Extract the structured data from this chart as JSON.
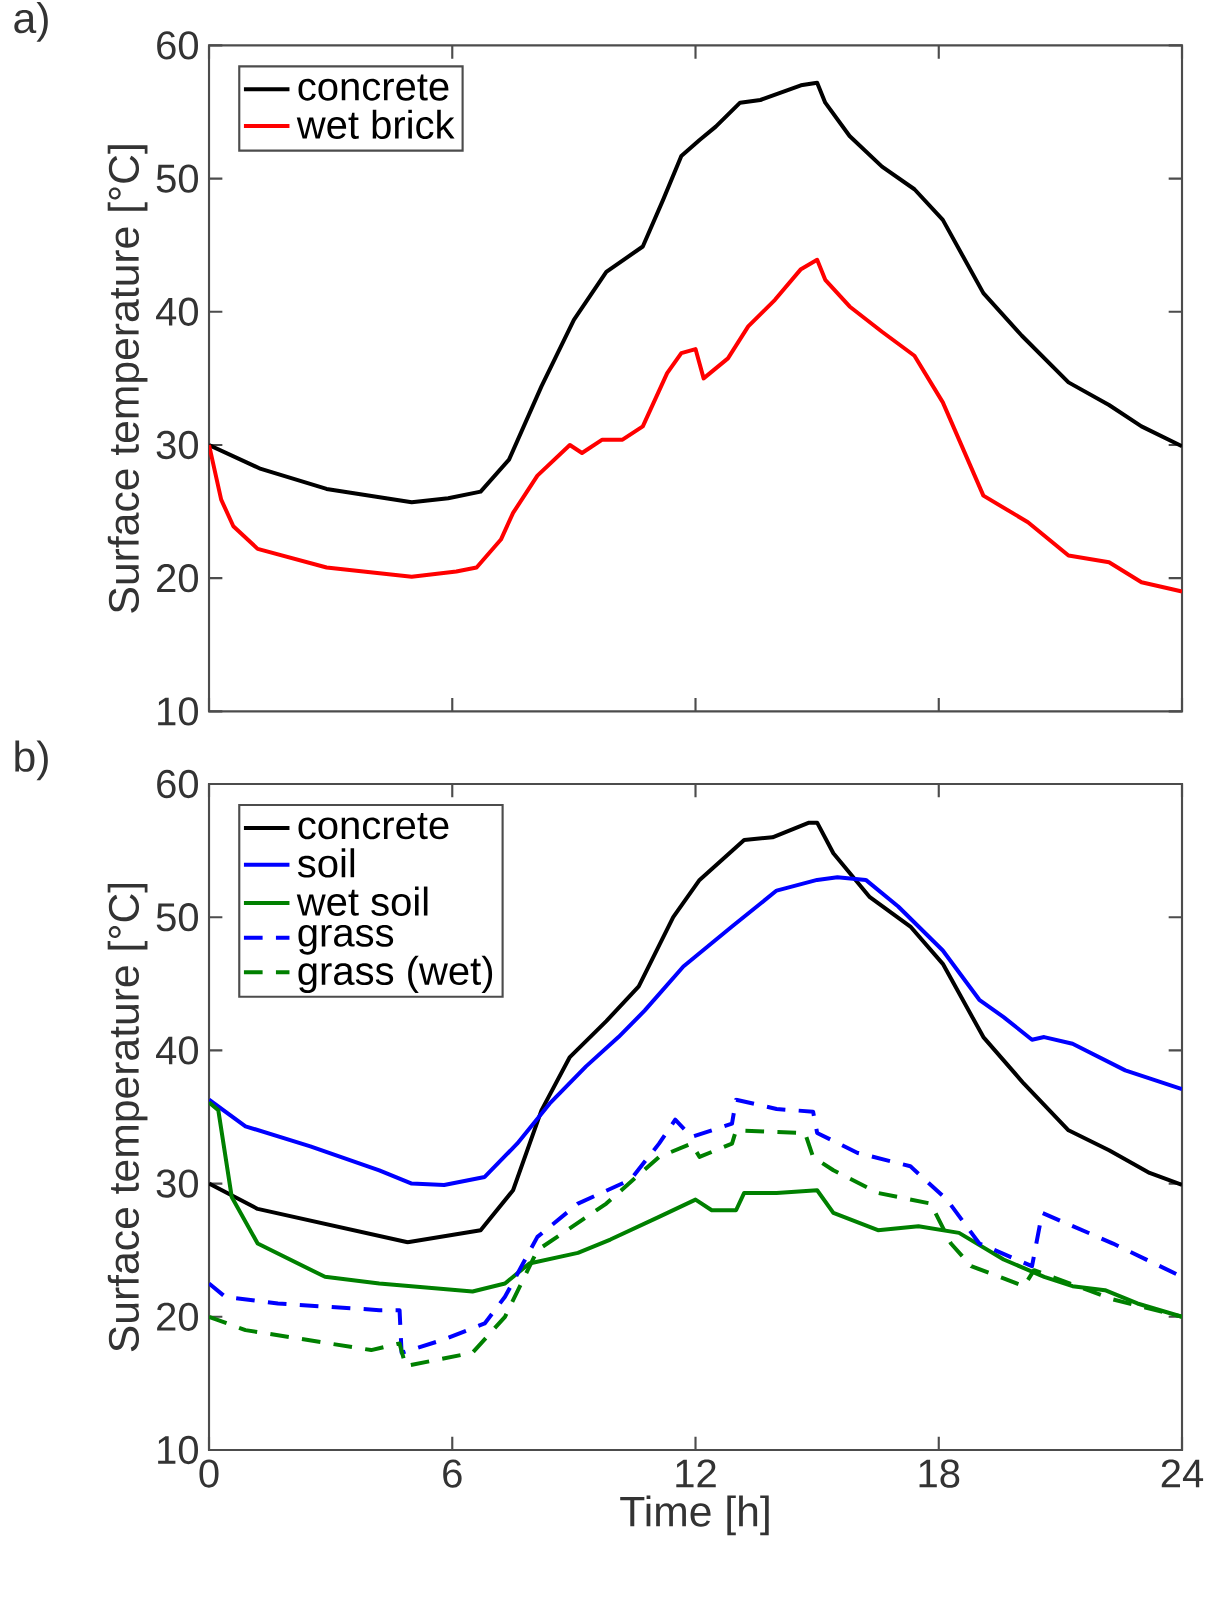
{
  "chart_data": [
    {
      "type": "line",
      "title": "a)",
      "ylabel": "Surface temperature [°C]",
      "xlim": [
        0,
        24
      ],
      "ylim": [
        10,
        60
      ],
      "xticks": [
        0,
        6,
        12,
        18,
        24
      ],
      "yticks": [
        10,
        20,
        30,
        40,
        50,
        60
      ],
      "tick_labels": "y",
      "legend": "top left",
      "marker": "none",
      "series": [
        {
          "name": "concrete",
          "color": "#000000",
          "line_style": "solid",
          "x": [
            0,
            1.28,
            2.9,
            5.0,
            5.9,
            6.7,
            7.4,
            8.2,
            9.0,
            9.8,
            10.7,
            11.2,
            11.65,
            12.1,
            12.5,
            13.1,
            13.6,
            14.6,
            15.0,
            15.2,
            15.8,
            16.6,
            17.4,
            18.1,
            19.1,
            20.05,
            21.2,
            22.2,
            23.0,
            24
          ],
          "values": [
            30,
            28.2,
            26.7,
            25.7,
            26.0,
            26.5,
            28.9,
            34.4,
            39.4,
            43,
            44.9,
            48.4,
            51.7,
            52.9,
            53.9,
            55.7,
            55.9,
            57,
            57.2,
            55.7,
            53.2,
            50.9,
            49.2,
            46.9,
            41.4,
            38.2,
            34.7,
            33,
            31.4,
            29.9
          ]
        },
        {
          "name": "wet brick",
          "color": "#ff0000",
          "line_style": "solid",
          "x": [
            0,
            0.3,
            0.6,
            1.2,
            2.9,
            5.0,
            6.1,
            6.6,
            7.2,
            7.5,
            8.1,
            8.9,
            9.2,
            9.7,
            10.2,
            10.7,
            11.3,
            11.65,
            12.0,
            12.2,
            12.8,
            13.3,
            13.96,
            14.6,
            15.0,
            15.2,
            15.8,
            16.6,
            17.4,
            18.1,
            19.1,
            20.2,
            21.2,
            22.2,
            23.0,
            24
          ],
          "values": [
            30,
            25.9,
            23.9,
            22.2,
            20.8,
            20.1,
            20.5,
            20.8,
            22.9,
            24.9,
            27.7,
            30,
            29.4,
            30.4,
            30.4,
            31.4,
            35.4,
            36.9,
            37.2,
            35,
            36.5,
            38.9,
            40.9,
            43.2,
            43.9,
            42.4,
            40.4,
            38.5,
            36.7,
            33.2,
            26.2,
            24.2,
            21.7,
            21.2,
            19.7,
            19.0
          ]
        }
      ]
    },
    {
      "type": "line",
      "title": "b)",
      "xlabel": "Time [h]",
      "ylabel": "Surface temperature [°C]",
      "xlim": [
        0,
        24
      ],
      "ylim": [
        10,
        60
      ],
      "xticks": [
        0,
        6,
        12,
        18,
        24
      ],
      "yticks": [
        10,
        20,
        30,
        40,
        50,
        60
      ],
      "legend": "top left",
      "marker": "none",
      "series": [
        {
          "name": "concrete",
          "color": "#000000",
          "line_style": "solid",
          "x": [
            0,
            1.2,
            4.9,
            6.7,
            7.5,
            8.2,
            8.9,
            9.8,
            10.6,
            11.45,
            12.1,
            13.2,
            13.9,
            14.8,
            15.0,
            15.4,
            16.3,
            17.3,
            18.1,
            19.1,
            20.1,
            21.2,
            22.2,
            23.2,
            24
          ],
          "values": [
            30,
            28.1,
            25.6,
            26.5,
            29.5,
            35.5,
            39.5,
            42.2,
            44.8,
            50,
            52.8,
            55.8,
            56,
            57.1,
            57.1,
            54.8,
            51.5,
            49.3,
            46.5,
            41,
            37.5,
            34,
            32.5,
            30.8,
            29.9
          ]
        },
        {
          "name": "soil",
          "color": "#0000ff",
          "line_style": "solid",
          "x": [
            0,
            0.9,
            2.5,
            4.2,
            5.0,
            5.8,
            6.8,
            7.6,
            8.4,
            9.3,
            10.1,
            10.75,
            11.7,
            12.9,
            14.0,
            15.0,
            15.5,
            16.2,
            17.0,
            18.1,
            19.0,
            19.6,
            20.3,
            20.6,
            21.3,
            22.6,
            24
          ],
          "values": [
            36.3,
            34.3,
            32.8,
            31,
            30,
            29.9,
            30.5,
            33,
            36,
            38.8,
            41,
            43,
            46.3,
            49.3,
            52,
            52.8,
            53,
            52.8,
            50.8,
            47.5,
            43.8,
            42.5,
            40.8,
            41,
            40.5,
            38.5,
            37.1
          ]
        },
        {
          "name": "wet soil",
          "color": "#008000",
          "line_style": "solid",
          "x": [
            0,
            0.23,
            0.56,
            1.2,
            2.86,
            4.2,
            6.5,
            7.3,
            7.9,
            9.1,
            9.9,
            11.1,
            12.0,
            12.4,
            13.0,
            13.2,
            14.0,
            15.0,
            15.4,
            16.5,
            17.5,
            18.5,
            19.6,
            20.6,
            21.3,
            22.1,
            22.9,
            24
          ],
          "values": [
            36.1,
            35.5,
            29,
            25.5,
            23,
            22.5,
            21.9,
            22.5,
            24,
            24.8,
            25.8,
            27.5,
            28.8,
            28,
            28,
            29.3,
            29.3,
            29.5,
            27.8,
            26.5,
            26.8,
            26.3,
            24.3,
            23,
            22.3,
            22,
            21,
            20
          ]
        },
        {
          "name": "grass",
          "color": "#0000ff",
          "line_style": "dashed",
          "x": [
            0,
            0.4,
            1.7,
            4.2,
            4.7,
            4.75,
            5.8,
            6.8,
            7.3,
            8.1,
            9.1,
            10.4,
            11.1,
            11.5,
            11.9,
            12.9,
            13.0,
            14.0,
            14.9,
            15.0,
            16.0,
            17.3,
            18.2,
            19.0,
            20.3,
            20.55,
            22.3,
            24
          ],
          "values": [
            22.5,
            21.5,
            21,
            20.5,
            20.5,
            17.3,
            18.3,
            19.5,
            21.5,
            26,
            28.5,
            30.3,
            33,
            34.8,
            33.5,
            34.5,
            36.3,
            35.6,
            35.4,
            33.8,
            32.3,
            31.3,
            28.8,
            25.5,
            23.8,
            27.8,
            25.5,
            23
          ]
        },
        {
          "name": "grass (wet)",
          "color": "#008000",
          "line_style": "dashed",
          "x": [
            0,
            0.9,
            4.0,
            4.7,
            4.85,
            6.5,
            7.3,
            8.1,
            9.8,
            11.1,
            11.9,
            12.1,
            12.9,
            13.0,
            14.7,
            14.9,
            15.4,
            16.5,
            17.8,
            18.3,
            18.8,
            20.1,
            20.35,
            22.3,
            24
          ],
          "values": [
            20,
            19,
            17.5,
            18,
            16.3,
            17.3,
            20,
            25,
            28.5,
            32,
            33,
            32,
            33,
            34,
            33.8,
            32,
            31,
            29.3,
            28.5,
            25.5,
            23.8,
            22.3,
            23.5,
            21.3,
            20
          ]
        }
      ]
    }
  ]
}
